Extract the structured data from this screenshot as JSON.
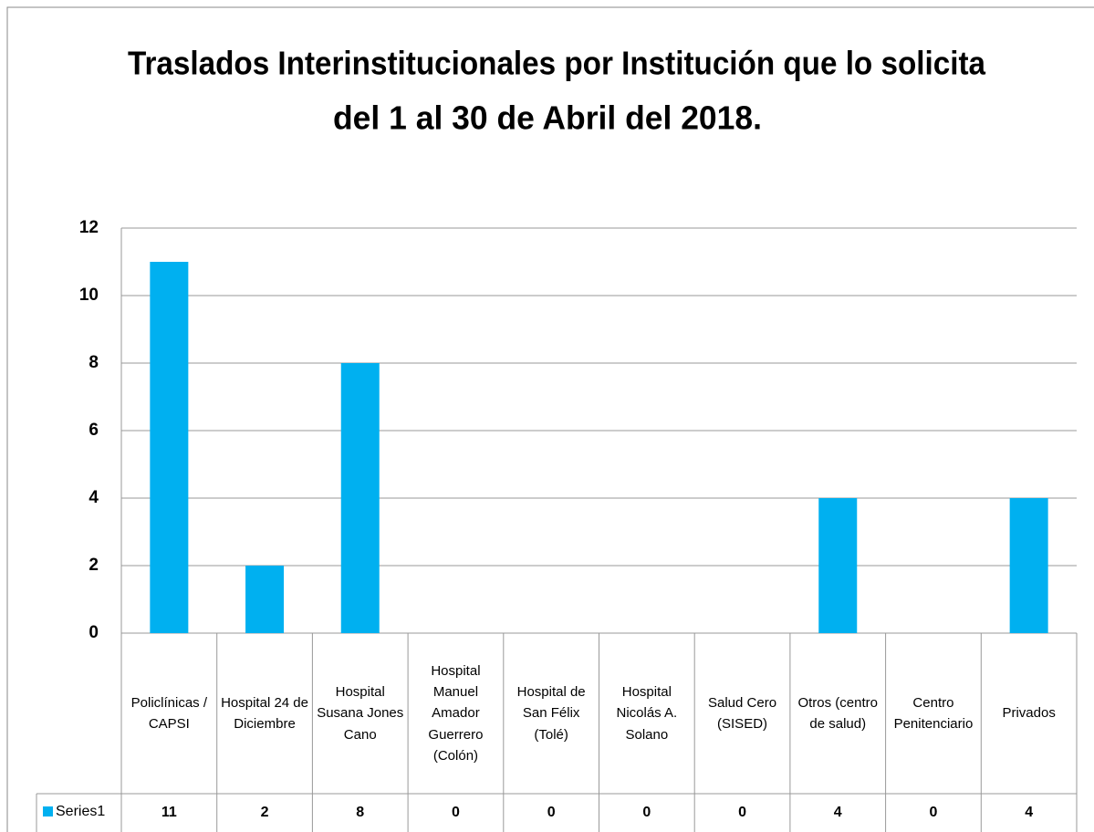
{
  "chart_data": {
    "type": "bar",
    "title": "Traslados Interinstitucionales por Institución que lo solicita",
    "subtitle": "del 1 al 30 de  Abril del 2018.",
    "categories": [
      "Policlínicas / CAPSI",
      "Hospital 24 de Diciembre",
      "Hospital Susana Jones Cano",
      "Hospital Manuel Amador Guerrero (Colón)",
      "Hospital de San Félix (Tolé)",
      "Hospital Nicolás A. Solano",
      "Salud Cero (SISED)",
      "Otros (centro de salud)",
      "Centro Penitenciario",
      "Privados"
    ],
    "series": [
      {
        "name": "Series1",
        "color": "#00b0f0",
        "values": [
          11,
          2,
          8,
          0,
          0,
          0,
          0,
          4,
          0,
          4
        ]
      }
    ],
    "ylim": [
      0,
      12
    ],
    "yticks": [
      0,
      2,
      4,
      6,
      8,
      10,
      12
    ],
    "grid": true
  }
}
